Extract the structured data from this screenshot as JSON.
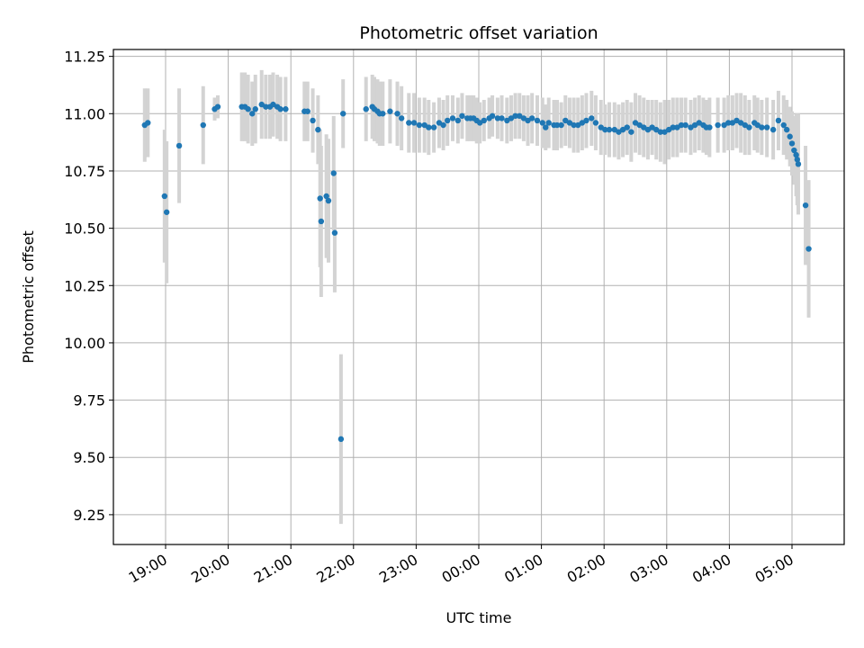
{
  "chart_data": {
    "type": "scatter",
    "title": "Photometric offset variation",
    "xlabel": "UTC time",
    "ylabel": "Photometric offset",
    "grid": true,
    "ylim": [
      9.12,
      11.28
    ],
    "xlim": [
      "18:10",
      "05:50"
    ],
    "x_ticks": [
      "19:00",
      "20:00",
      "21:00",
      "22:00",
      "23:00",
      "00:00",
      "01:00",
      "02:00",
      "03:00",
      "04:00",
      "05:00"
    ],
    "y_ticks": [
      "9.25",
      "9.50",
      "9.75",
      "10.00",
      "10.25",
      "10.50",
      "10.75",
      "11.00",
      "11.25"
    ],
    "colors": {
      "marker": "#1f77b4",
      "errorbar": "#d3d3d3",
      "grid": "#b0b0b0"
    },
    "series": [
      {
        "x": [
          "18:40",
          "18:43",
          "18:59",
          "19:01",
          "19:13",
          "19:36",
          "19:47",
          "19:50",
          "20:13",
          "20:16",
          "20:19",
          "20:23",
          "20:26",
          "20:32",
          "20:36",
          "20:40",
          "20:43",
          "20:47",
          "20:50",
          "20:55",
          "21:13",
          "21:16",
          "21:21",
          "21:26",
          "21:28",
          "21:29",
          "21:34",
          "21:36",
          "21:41",
          "21:42",
          "21:48",
          "21:50",
          "22:12",
          "22:18",
          "22:20",
          "22:23",
          "22:25",
          "22:28",
          "22:35",
          "22:42",
          "22:46",
          "22:53",
          "22:58",
          "23:03",
          "23:08",
          "23:12",
          "23:17",
          "23:22",
          "23:26",
          "23:30",
          "23:35",
          "23:40",
          "23:44",
          "23:49",
          "23:52",
          "23:55",
          "23:58",
          "00:01",
          "00:05",
          "00:10",
          "00:13",
          "00:18",
          "00:22",
          "00:27",
          "00:31",
          "00:35",
          "00:39",
          "00:43",
          "00:47",
          "00:51",
          "00:56",
          "01:01",
          "01:04",
          "01:07",
          "01:12",
          "01:15",
          "01:19",
          "01:23",
          "01:27",
          "01:31",
          "01:35",
          "01:39",
          "01:43",
          "01:48",
          "01:52",
          "01:57",
          "02:01",
          "02:05",
          "02:10",
          "02:14",
          "02:18",
          "02:22",
          "02:26",
          "02:30",
          "02:34",
          "02:38",
          "02:42",
          "02:46",
          "02:50",
          "02:54",
          "02:58",
          "03:02",
          "03:06",
          "03:10",
          "03:14",
          "03:18",
          "03:23",
          "03:27",
          "03:31",
          "03:35",
          "03:38",
          "03:41",
          "03:49",
          "03:55",
          "03:59",
          "04:03",
          "04:07",
          "04:11",
          "04:15",
          "04:19",
          "04:24",
          "04:27",
          "04:31",
          "04:36",
          "04:42",
          "04:47",
          "04:52",
          "04:55",
          "04:58",
          "05:00",
          "05:02",
          "05:04",
          "05:05",
          "05:06",
          "05:13",
          "05:16"
        ],
        "y": [
          10.95,
          10.96,
          10.64,
          10.57,
          10.86,
          10.95,
          11.02,
          11.03,
          11.03,
          11.03,
          11.02,
          11.0,
          11.02,
          11.04,
          11.03,
          11.03,
          11.04,
          11.03,
          11.02,
          11.02,
          11.01,
          11.01,
          10.97,
          10.93,
          10.63,
          10.53,
          10.64,
          10.62,
          10.74,
          10.48,
          9.58,
          11.0,
          11.02,
          11.03,
          11.02,
          11.01,
          11.0,
          11.0,
          11.01,
          11.0,
          10.98,
          10.96,
          10.96,
          10.95,
          10.95,
          10.94,
          10.94,
          10.96,
          10.95,
          10.97,
          10.98,
          10.97,
          10.99,
          10.98,
          10.98,
          10.98,
          10.97,
          10.96,
          10.97,
          10.98,
          10.99,
          10.98,
          10.98,
          10.97,
          10.98,
          10.99,
          10.99,
          10.98,
          10.97,
          10.98,
          10.97,
          10.96,
          10.94,
          10.96,
          10.95,
          10.95,
          10.95,
          10.97,
          10.96,
          10.95,
          10.95,
          10.96,
          10.97,
          10.98,
          10.96,
          10.94,
          10.93,
          10.93,
          10.93,
          10.92,
          10.93,
          10.94,
          10.92,
          10.96,
          10.95,
          10.94,
          10.93,
          10.94,
          10.93,
          10.92,
          10.92,
          10.93,
          10.94,
          10.94,
          10.95,
          10.95,
          10.94,
          10.95,
          10.96,
          10.95,
          10.94,
          10.94,
          10.95,
          10.95,
          10.96,
          10.96,
          10.97,
          10.96,
          10.95,
          10.94,
          10.96,
          10.95,
          10.94,
          10.94,
          10.93,
          10.97,
          10.95,
          10.93,
          10.9,
          10.87,
          10.84,
          10.82,
          10.8,
          10.78,
          10.6,
          10.41
        ],
        "err": [
          0.16,
          0.15,
          0.29,
          0.31,
          0.25,
          0.17,
          0.05,
          0.05,
          0.15,
          0.15,
          0.15,
          0.14,
          0.15,
          0.15,
          0.14,
          0.14,
          0.14,
          0.14,
          0.14,
          0.14,
          0.13,
          0.13,
          0.14,
          0.15,
          0.3,
          0.33,
          0.27,
          0.27,
          0.25,
          0.26,
          0.37,
          0.15,
          0.14,
          0.14,
          0.14,
          0.14,
          0.14,
          0.14,
          0.14,
          0.14,
          0.14,
          0.13,
          0.13,
          0.12,
          0.12,
          0.12,
          0.11,
          0.11,
          0.11,
          0.11,
          0.1,
          0.1,
          0.1,
          0.1,
          0.1,
          0.1,
          0.1,
          0.09,
          0.09,
          0.09,
          0.09,
          0.09,
          0.1,
          0.1,
          0.1,
          0.1,
          0.1,
          0.1,
          0.11,
          0.11,
          0.11,
          0.11,
          0.1,
          0.11,
          0.11,
          0.11,
          0.1,
          0.11,
          0.11,
          0.12,
          0.12,
          0.12,
          0.12,
          0.12,
          0.12,
          0.12,
          0.11,
          0.12,
          0.12,
          0.12,
          0.12,
          0.12,
          0.13,
          0.13,
          0.13,
          0.13,
          0.13,
          0.12,
          0.13,
          0.13,
          0.14,
          0.13,
          0.13,
          0.13,
          0.12,
          0.12,
          0.12,
          0.12,
          0.12,
          0.12,
          0.12,
          0.13,
          0.12,
          0.12,
          0.12,
          0.12,
          0.12,
          0.13,
          0.13,
          0.12,
          0.12,
          0.12,
          0.12,
          0.13,
          0.13,
          0.13,
          0.13,
          0.13,
          0.13,
          0.14,
          0.15,
          0.18,
          0.2,
          0.22,
          0.26,
          0.3
        ]
      }
    ]
  }
}
